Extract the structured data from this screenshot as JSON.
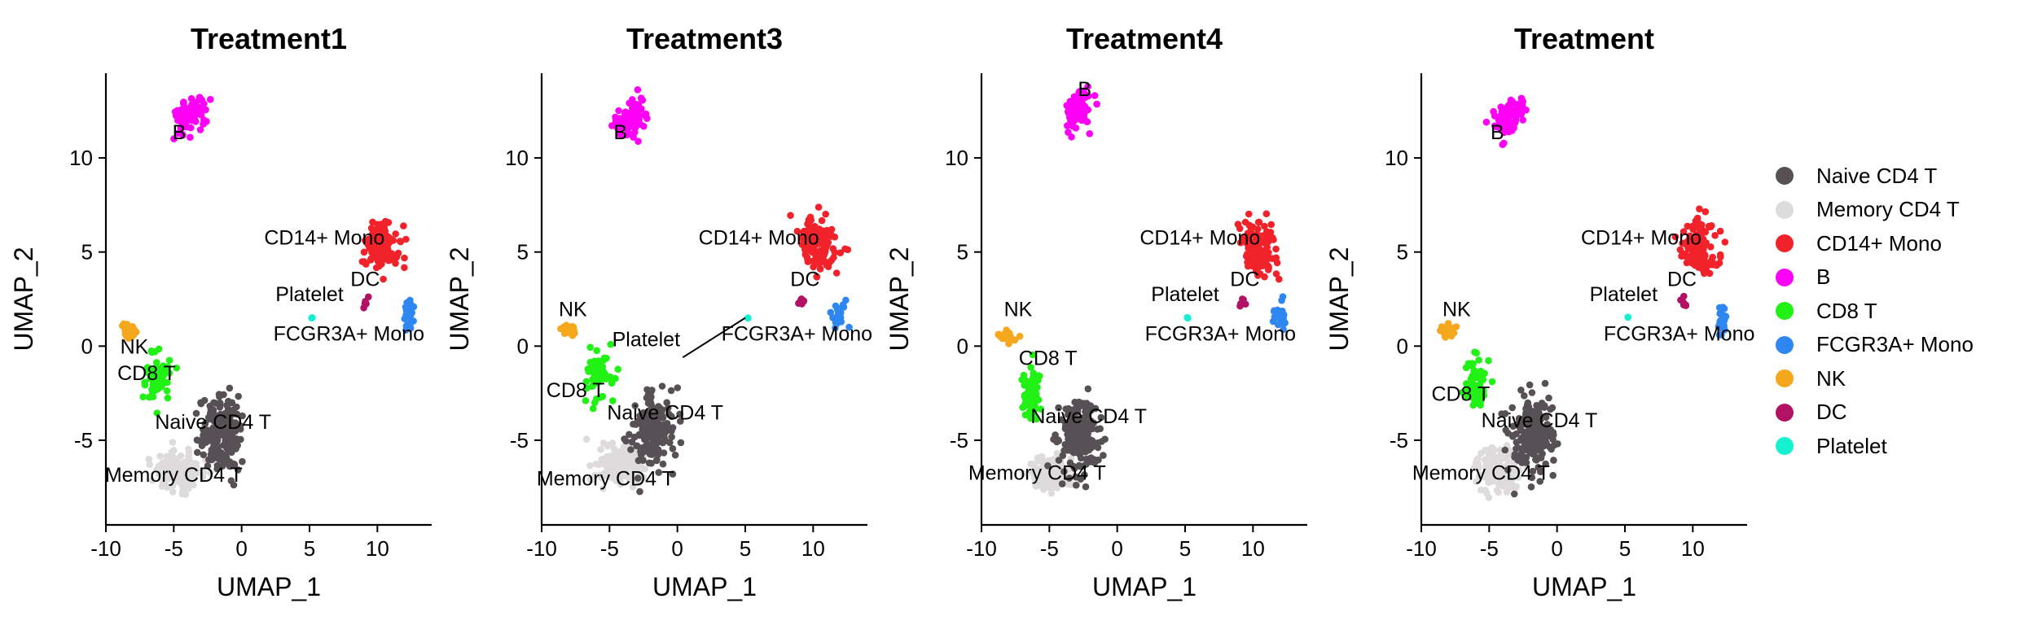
{
  "chart_data": {
    "type": "scatter",
    "xlabel": "UMAP_1",
    "ylabel": "UMAP_2",
    "xlim": [
      -10,
      14
    ],
    "ylim": [
      -9.5,
      14.5
    ],
    "xticks": [
      "-10",
      "-5",
      "0",
      "5",
      "10"
    ],
    "xtick_values": [
      -10,
      -5,
      0,
      5,
      10
    ],
    "yticks": [
      "-5",
      "0",
      "5",
      "10"
    ],
    "ytick_values": [
      -5,
      0,
      5,
      10
    ],
    "legend_position": "right",
    "legend": [
      {
        "name": "Naive CD4 T",
        "color": "#575155"
      },
      {
        "name": "Memory CD4 T",
        "color": "#dedbdc"
      },
      {
        "name": "CD14+ Mono",
        "color": "#f2222b"
      },
      {
        "name": "B",
        "color": "#ff00f7"
      },
      {
        "name": "CD8 T",
        "color": "#21f115"
      },
      {
        "name": "FCGR3A+ Mono",
        "color": "#2e86f0"
      },
      {
        "name": "NK",
        "color": "#f5a81d"
      },
      {
        "name": "DC",
        "color": "#b21264"
      },
      {
        "name": "Platelet",
        "color": "#17f0d0"
      }
    ],
    "panels": [
      {
        "title": "Treatment1",
        "clusters": [
          {
            "name": "Naive CD4 T",
            "center": [
              -1.5,
              -4.6
            ],
            "spread": [
              1.4,
              1.9
            ]
          },
          {
            "name": "Memory CD4 T",
            "center": [
              -4.6,
              -6.6
            ],
            "spread": [
              1.6,
              0.9
            ]
          },
          {
            "name": "CD14+ Mono",
            "center": [
              10.3,
              5.3
            ],
            "spread": [
              1.1,
              1.2
            ]
          },
          {
            "name": "B",
            "center": [
              -3.7,
              12.3
            ],
            "spread": [
              0.9,
              0.8
            ]
          },
          {
            "name": "CD8 T",
            "center": [
              -6.2,
              -1.6
            ],
            "spread": [
              0.8,
              1.2
            ]
          },
          {
            "name": "FCGR3A+ Mono",
            "center": [
              12.3,
              1.6
            ],
            "spread": [
              0.35,
              0.8
            ]
          },
          {
            "name": "NK",
            "center": [
              -8.3,
              0.8
            ],
            "spread": [
              0.4,
              0.35
            ]
          },
          {
            "name": "DC",
            "center": [
              9.1,
              2.3
            ],
            "spread": [
              0.2,
              0.25
            ]
          },
          {
            "name": "Platelet",
            "center": [
              5.2,
              1.5
            ],
            "spread": [
              0.05,
              0.05
            ]
          }
        ],
        "labels": [
          {
            "text": "B",
            "x": -4.6,
            "y": 11.0
          },
          {
            "text": "CD14+ Mono",
            "x": 6.1,
            "y": 5.4
          },
          {
            "text": "DC",
            "x": 9.1,
            "y": 3.2
          },
          {
            "text": "Platelet",
            "x": 5.0,
            "y": 2.4
          },
          {
            "text": "FCGR3A+ Mono",
            "x": 7.9,
            "y": 0.3
          },
          {
            "text": "NK",
            "x": -7.9,
            "y": -0.4
          },
          {
            "text": "CD8 T",
            "x": -7.0,
            "y": -1.8
          },
          {
            "text": "Naive CD4 T",
            "x": -2.1,
            "y": -4.4
          },
          {
            "text": "Memory CD4 T",
            "x": -5.0,
            "y": -7.2
          }
        ]
      },
      {
        "title": "Treatment3",
        "clusters": [
          {
            "name": "Naive CD4 T",
            "center": [
              -1.8,
              -4.4
            ],
            "spread": [
              1.4,
              1.9
            ]
          },
          {
            "name": "Memory CD4 T",
            "center": [
              -4.4,
              -6.4
            ],
            "spread": [
              1.5,
              1.0
            ]
          },
          {
            "name": "CD14+ Mono",
            "center": [
              10.4,
              5.3
            ],
            "spread": [
              1.1,
              1.2
            ]
          },
          {
            "name": "B",
            "center": [
              -3.5,
              12.1
            ],
            "spread": [
              0.9,
              0.8
            ]
          },
          {
            "name": "CD8 T",
            "center": [
              -5.8,
              -1.6
            ],
            "spread": [
              0.9,
              1.2
            ]
          },
          {
            "name": "FCGR3A+ Mono",
            "center": [
              12.0,
              1.6
            ],
            "spread": [
              0.5,
              0.6
            ]
          },
          {
            "name": "NK",
            "center": [
              -8.0,
              0.8
            ],
            "spread": [
              0.5,
              0.4
            ]
          },
          {
            "name": "DC",
            "center": [
              9.2,
              2.3
            ],
            "spread": [
              0.2,
              0.25
            ]
          },
          {
            "name": "Platelet",
            "center": [
              5.2,
              1.5
            ],
            "spread": [
              0.05,
              0.05
            ]
          }
        ],
        "labels": [
          {
            "text": "B",
            "x": -4.2,
            "y": 11.0
          },
          {
            "text": "CD14+ Mono",
            "x": 6.0,
            "y": 5.4
          },
          {
            "text": "DC",
            "x": 9.4,
            "y": 3.2
          },
          {
            "text": "NK",
            "x": -7.7,
            "y": 1.6
          },
          {
            "text": "FCGR3A+ Mono",
            "x": 8.8,
            "y": 0.3
          },
          {
            "text": "Platelet",
            "x": -2.3,
            "y": 0.0
          },
          {
            "text": "CD8 T",
            "x": -7.5,
            "y": -2.7
          },
          {
            "text": "Naive CD4 T",
            "x": -0.9,
            "y": -3.9
          },
          {
            "text": "Memory CD4 T",
            "x": -5.3,
            "y": -7.4
          }
        ],
        "connectors": [
          {
            "from": [
              5.0,
              1.5
            ],
            "to": [
              0.4,
              -0.6
            ]
          }
        ]
      },
      {
        "title": "Treatment4",
        "clusters": [
          {
            "name": "Naive CD4 T",
            "center": [
              -2.8,
              -4.8
            ],
            "spread": [
              1.4,
              1.8
            ]
          },
          {
            "name": "Memory CD4 T",
            "center": [
              -5.0,
              -6.8
            ],
            "spread": [
              1.4,
              0.8
            ]
          },
          {
            "name": "CD14+ Mono",
            "center": [
              10.3,
              5.3
            ],
            "spread": [
              1.1,
              1.2
            ]
          },
          {
            "name": "B",
            "center": [
              -3.0,
              12.6
            ],
            "spread": [
              0.9,
              0.9
            ]
          },
          {
            "name": "CD8 T",
            "center": [
              -6.4,
              -2.6
            ],
            "spread": [
              0.8,
              1.3
            ]
          },
          {
            "name": "FCGR3A+ Mono",
            "center": [
              12.0,
              1.6
            ],
            "spread": [
              0.5,
              0.6
            ]
          },
          {
            "name": "NK",
            "center": [
              -8.1,
              0.5
            ],
            "spread": [
              0.6,
              0.4
            ]
          },
          {
            "name": "DC",
            "center": [
              9.2,
              2.3
            ],
            "spread": [
              0.2,
              0.25
            ]
          },
          {
            "name": "Platelet",
            "center": [
              5.2,
              1.5
            ],
            "spread": [
              0.05,
              0.05
            ]
          }
        ],
        "labels": [
          {
            "text": "B",
            "x": -2.4,
            "y": 13.3
          },
          {
            "text": "CD14+ Mono",
            "x": 6.1,
            "y": 5.4
          },
          {
            "text": "DC",
            "x": 9.4,
            "y": 3.2
          },
          {
            "text": "Platelet",
            "x": 5.0,
            "y": 2.4
          },
          {
            "text": "NK",
            "x": -7.3,
            "y": 1.6
          },
          {
            "text": "FCGR3A+ Mono",
            "x": 7.6,
            "y": 0.3
          },
          {
            "text": "CD8 T",
            "x": -5.1,
            "y": -1.0
          },
          {
            "text": "Naive CD4 T",
            "x": -2.1,
            "y": -4.1
          },
          {
            "text": "Memory CD4 T",
            "x": -5.9,
            "y": -7.1
          }
        ]
      },
      {
        "title": "Treatment",
        "clusters": [
          {
            "name": "Naive CD4 T",
            "center": [
              -1.6,
              -4.5
            ],
            "spread": [
              1.4,
              1.9
            ]
          },
          {
            "name": "Memory CD4 T",
            "center": [
              -4.4,
              -6.6
            ],
            "spread": [
              1.6,
              1.0
            ]
          },
          {
            "name": "CD14+ Mono",
            "center": [
              10.5,
              5.2
            ],
            "spread": [
              1.1,
              1.2
            ]
          },
          {
            "name": "B",
            "center": [
              -3.5,
              12.2
            ],
            "spread": [
              0.9,
              0.8
            ]
          },
          {
            "name": "CD8 T",
            "center": [
              -6.0,
              -2.0
            ],
            "spread": [
              0.8,
              1.2
            ]
          },
          {
            "name": "FCGR3A+ Mono",
            "center": [
              12.2,
              1.5
            ],
            "spread": [
              0.35,
              0.8
            ]
          },
          {
            "name": "NK",
            "center": [
              -8.1,
              0.8
            ],
            "spread": [
              0.5,
              0.4
            ]
          },
          {
            "name": "DC",
            "center": [
              9.2,
              2.3
            ],
            "spread": [
              0.2,
              0.25
            ]
          },
          {
            "name": "Platelet",
            "center": [
              5.2,
              1.5
            ],
            "spread": [
              0.05,
              0.05
            ]
          }
        ],
        "labels": [
          {
            "text": "B",
            "x": -4.4,
            "y": 11.0
          },
          {
            "text": "CD14+ Mono",
            "x": 6.2,
            "y": 5.4
          },
          {
            "text": "DC",
            "x": 9.2,
            "y": 3.2
          },
          {
            "text": "Platelet",
            "x": 4.9,
            "y": 2.4
          },
          {
            "text": "NK",
            "x": -7.4,
            "y": 1.6
          },
          {
            "text": "FCGR3A+ Mono",
            "x": 9.0,
            "y": 0.3
          },
          {
            "text": "CD8 T",
            "x": -7.1,
            "y": -2.9
          },
          {
            "text": "Naive CD4 T",
            "x": -1.3,
            "y": -4.3
          },
          {
            "text": "Memory CD4 T",
            "x": -5.6,
            "y": -7.1
          }
        ]
      }
    ]
  }
}
